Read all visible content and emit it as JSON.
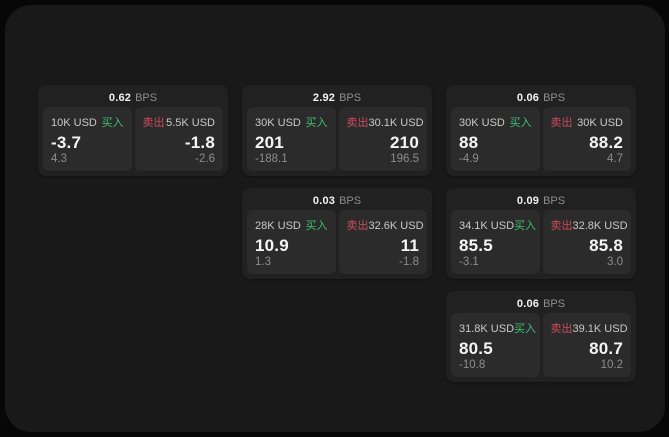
{
  "colors": {
    "outer_background": "#070707",
    "surface_background": "#191919",
    "card_background": "#212121",
    "panel_background": "#2b2b2b",
    "buy_green": "#3fc071",
    "sell_red": "#cd4b5e",
    "value_white": "#f5f5f5",
    "muted_gray": "#8d8d8d"
  },
  "labels": {
    "bps_unit": "BPS",
    "buy": "买入",
    "sell": "卖出"
  },
  "cards": [
    {
      "bps_value": "0.62",
      "buy": {
        "amount": "10K USD",
        "side_label": "买入",
        "value": "-3.7",
        "sub_value": "4.3"
      },
      "sell": {
        "side_label": "卖出",
        "amount": "5.5K USD",
        "value": "-1.8",
        "sub_value": "-2.6"
      }
    },
    {
      "bps_value": "2.92",
      "buy": {
        "amount": "30K USD",
        "side_label": "买入",
        "value": "201",
        "sub_value": "-188.1"
      },
      "sell": {
        "side_label": "卖出",
        "amount": "30.1K USD",
        "value": "210",
        "sub_value": "196.5"
      }
    },
    {
      "bps_value": "0.06",
      "buy": {
        "amount": "30K USD",
        "side_label": "买入",
        "value": "88",
        "sub_value": "-4.9"
      },
      "sell": {
        "side_label": "卖出",
        "amount": "30K USD",
        "value": "88.2",
        "sub_value": "4.7"
      }
    },
    {
      "bps_value": "0.03",
      "buy": {
        "amount": "28K USD",
        "side_label": "买入",
        "value": "10.9",
        "sub_value": "1.3"
      },
      "sell": {
        "side_label": "卖出",
        "amount": "32.6K USD",
        "value": "11",
        "sub_value": "-1.8"
      }
    },
    {
      "bps_value": "0.09",
      "buy": {
        "amount": "34.1K USD",
        "side_label": "买入",
        "value": "85.5",
        "sub_value": "-3.1"
      },
      "sell": {
        "side_label": "卖出",
        "amount": "32.8K USD",
        "value": "85.8",
        "sub_value": "3.0"
      }
    },
    {
      "bps_value": "0.06",
      "buy": {
        "amount": "31.8K USD",
        "side_label": "买入",
        "value": "80.5",
        "sub_value": "-10.8"
      },
      "sell": {
        "side_label": "卖出",
        "amount": "39.1K USD",
        "value": "80.7",
        "sub_value": "10.2"
      }
    }
  ]
}
